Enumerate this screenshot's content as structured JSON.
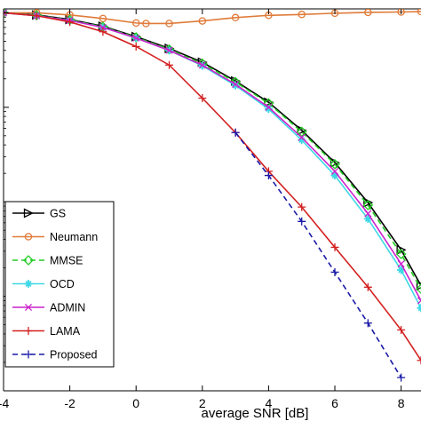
{
  "chart_data": {
    "type": "line",
    "xlabel": "average SNR [dB]",
    "ylabel": "",
    "title": "",
    "x_scale": "linear",
    "y_scale": "log",
    "xlim": [
      -4,
      8.6
    ],
    "ylim": [
      1e-05,
      0.11
    ],
    "x_ticks": [
      -4,
      -2,
      0,
      2,
      4,
      6,
      8
    ],
    "y_decades": [
      0.1,
      0.01,
      0.001,
      0.0001
    ],
    "grid": true,
    "legend_position": "bottom-left",
    "series": [
      {
        "name": "GS",
        "color": "#000000",
        "marker": "triangle-right",
        "dashed": false,
        "x": [
          -4,
          -3,
          -2,
          -1,
          0,
          1,
          2,
          3,
          4,
          5,
          6,
          7,
          8,
          8.6
        ],
        "y": [
          0.1,
          0.095,
          0.085,
          0.072,
          0.056,
          0.042,
          0.03,
          0.019,
          0.0113,
          0.0057,
          0.0026,
          0.00098,
          0.00031,
          0.00013
        ]
      },
      {
        "name": "Neumann",
        "color": "#e07b39",
        "marker": "circle",
        "dashed": false,
        "x": [
          -4,
          -3,
          -2,
          -1,
          0,
          0.3,
          1,
          2,
          3,
          4,
          5,
          6,
          7,
          8,
          8.6
        ],
        "y": [
          0.1,
          0.1,
          0.095,
          0.087,
          0.078,
          0.077,
          0.077,
          0.082,
          0.089,
          0.094,
          0.096,
          0.099,
          0.101,
          0.102,
          0.103
        ]
      },
      {
        "name": "MMSE",
        "color": "#22cc22",
        "marker": "diamond",
        "dashed": true,
        "x": [
          -4,
          -3,
          -2,
          -1,
          0,
          1,
          2,
          3,
          4,
          5,
          6,
          7,
          8,
          8.6
        ],
        "y": [
          0.1,
          0.094,
          0.084,
          0.071,
          0.055,
          0.041,
          0.029,
          0.0185,
          0.011,
          0.0055,
          0.0025,
          0.00092,
          0.00028,
          0.00012
        ]
      },
      {
        "name": "OCD",
        "color": "#3fd8e6",
        "marker": "star",
        "dashed": false,
        "x": [
          -4,
          -3,
          -2,
          -1,
          0,
          1,
          2,
          3,
          4,
          5,
          6,
          7,
          8,
          8.6
        ],
        "y": [
          0.1,
          0.093,
          0.083,
          0.07,
          0.054,
          0.04,
          0.0275,
          0.017,
          0.0096,
          0.0045,
          0.0019,
          0.00066,
          0.00019,
          7.5e-05
        ]
      },
      {
        "name": "ADMIN",
        "color": "#cc22cc",
        "marker": "x",
        "dashed": false,
        "x": [
          -4,
          -3,
          -2,
          -1,
          0,
          1,
          2,
          3,
          4,
          5,
          6,
          7,
          8,
          8.6
        ],
        "y": [
          0.1,
          0.093,
          0.083,
          0.07,
          0.054,
          0.04,
          0.028,
          0.0175,
          0.01,
          0.0048,
          0.0021,
          0.00075,
          0.00022,
          9e-05
        ]
      },
      {
        "name": "LAMA",
        "color": "#d42020",
        "marker": "plus",
        "dashed": false,
        "x": [
          -4,
          -3,
          -2,
          -1,
          0,
          1,
          2,
          3,
          4,
          5,
          6,
          7,
          8,
          8.6
        ],
        "y": [
          0.1,
          0.093,
          0.08,
          0.063,
          0.044,
          0.028,
          0.0125,
          0.0054,
          0.0021,
          0.00088,
          0.00033,
          0.000125,
          4.4e-05,
          2.1e-05
        ]
      },
      {
        "name": "Proposed",
        "color": "#1a1aa8",
        "marker": "plus",
        "dashed": true,
        "x": [
          3,
          4,
          5,
          6,
          7,
          8
        ],
        "y": [
          0.0054,
          0.0019,
          0.00062,
          0.00018,
          5.2e-05,
          1.38e-05
        ]
      }
    ]
  }
}
